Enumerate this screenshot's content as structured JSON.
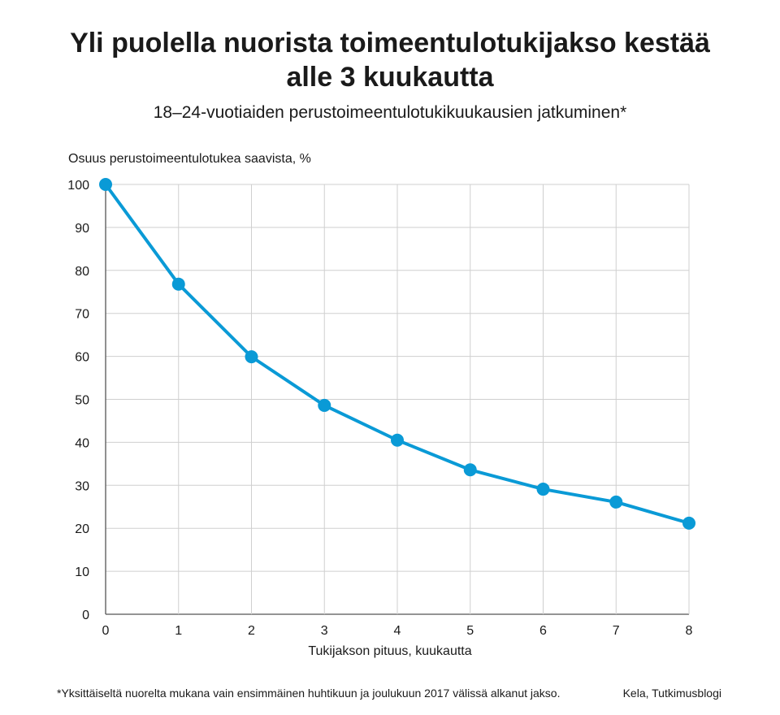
{
  "chart_data": {
    "type": "line",
    "title_lines": [
      "Yli puolella nuorista toimeentulotukijakso kestää",
      "alle 3 kuukautta"
    ],
    "subtitle": "18–24-vuotiaiden perustoimeentulotukikuukausien jatkuminen*",
    "ylabel": "Osuus perustoimeentulotukea saavista, %",
    "xlabel": "Tukijakson pituus, kuukautta",
    "x": [
      0,
      1,
      2,
      3,
      4,
      5,
      6,
      7,
      8
    ],
    "values": [
      100,
      76.8,
      59.9,
      48.6,
      40.5,
      33.6,
      29.1,
      26.1,
      21.2
    ],
    "xlim": [
      0,
      8
    ],
    "ylim": [
      0,
      100
    ],
    "yticks": [
      0,
      10,
      20,
      30,
      40,
      50,
      60,
      70,
      80,
      90,
      100
    ],
    "xticks": [
      0,
      1,
      2,
      3,
      4,
      5,
      6,
      7,
      8
    ],
    "grid": true,
    "color": "#0a9ad6",
    "footnote": "*Yksittäiseltä nuorelta mukana vain ensimmäinen huhtikuun ja joulukuun 2017 välissä alkanut jakso.",
    "source": "Kela, Tutkimusblogi"
  }
}
